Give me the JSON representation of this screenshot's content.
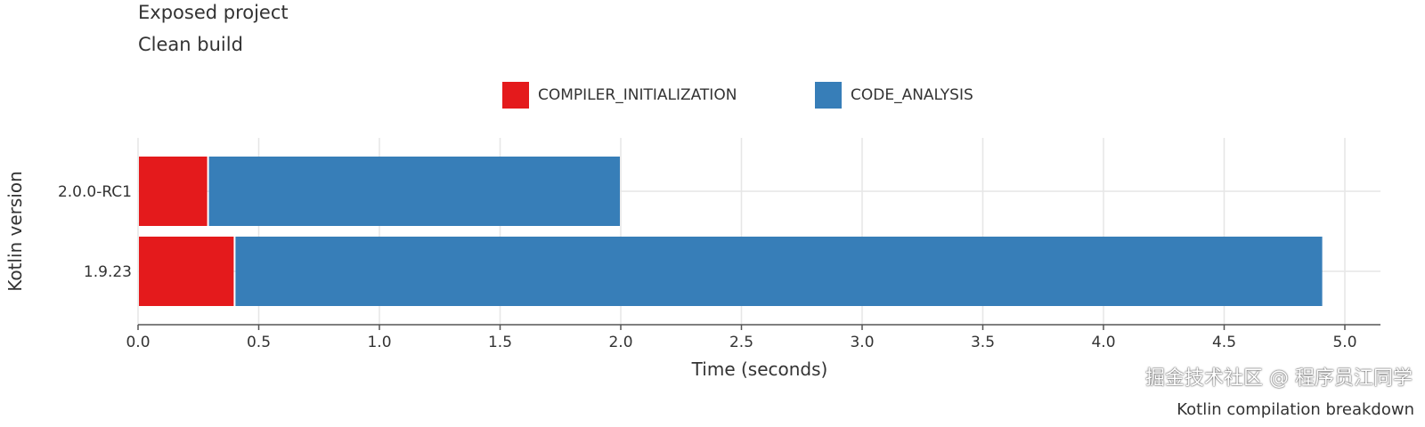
{
  "header": {
    "title": "Exposed project",
    "subtitle": "Clean build"
  },
  "caption": "Kotlin compilation breakdown",
  "watermark": "掘金技术社区 @ 程序员江同学",
  "chart_data": {
    "type": "bar",
    "orientation": "horizontal",
    "stacked": true,
    "categories": [
      "2.0.0-RC1",
      "1.9.23"
    ],
    "series": [
      {
        "name": "COMPILER_INITIALIZATION",
        "color": "#e41a1c",
        "values": [
          0.29,
          0.4
        ]
      },
      {
        "name": "CODE_ANALYSIS",
        "color": "#377eb8",
        "values": [
          1.71,
          4.51
        ]
      }
    ],
    "xlabel": "Time (seconds)",
    "ylabel": "Kotlin version",
    "xlim": [
      0,
      5.15
    ],
    "xticks": [
      "0.0",
      "0.5",
      "1.0",
      "1.5",
      "2.0",
      "2.5",
      "3.0",
      "3.5",
      "4.0",
      "4.5",
      "5.0"
    ],
    "grid": true,
    "legend": "top"
  }
}
